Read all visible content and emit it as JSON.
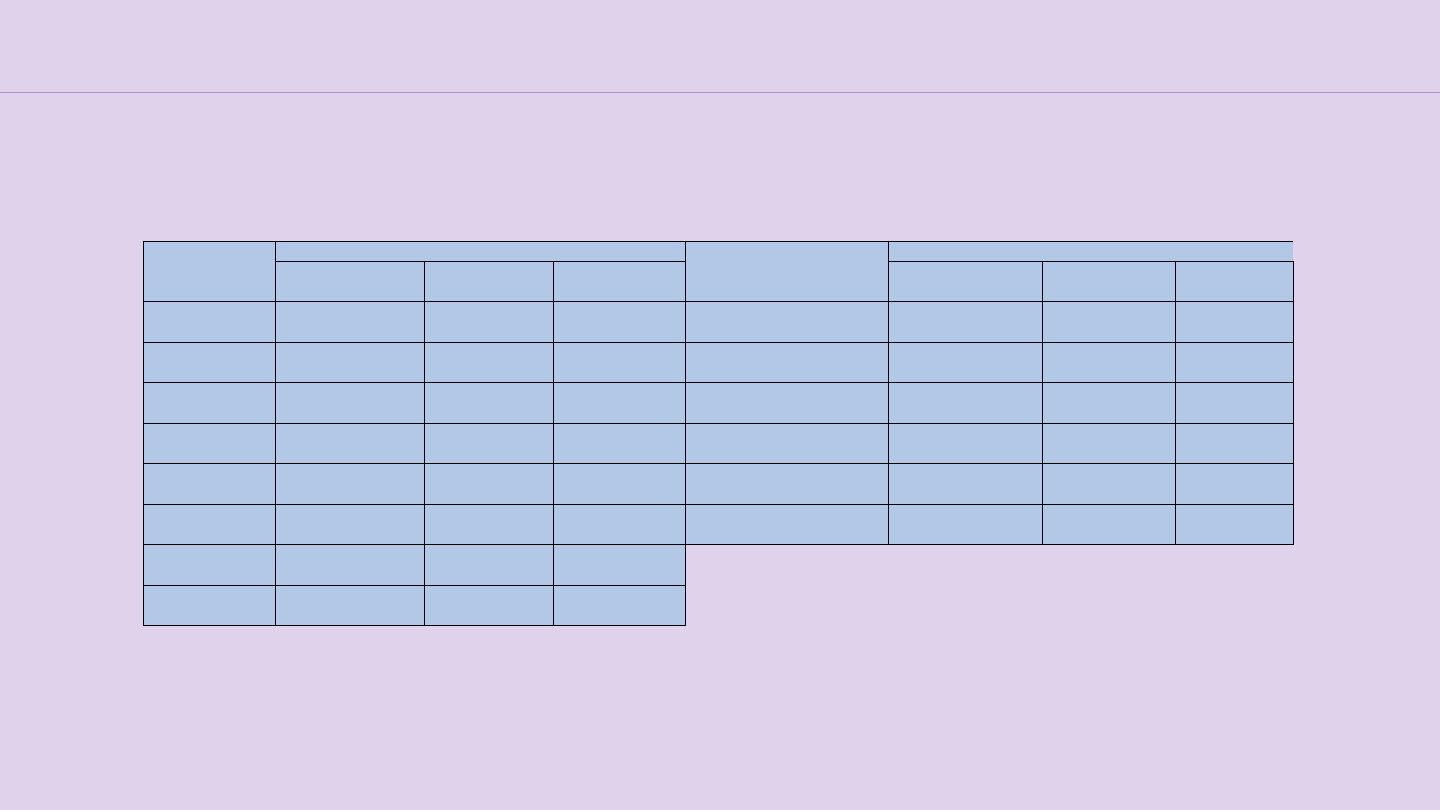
{
  "colors": {
    "background": "#e1d2ec",
    "divider": "#b48fd2",
    "cell_fill": "#b3c7e6",
    "cell_border": "#000000"
  }
}
